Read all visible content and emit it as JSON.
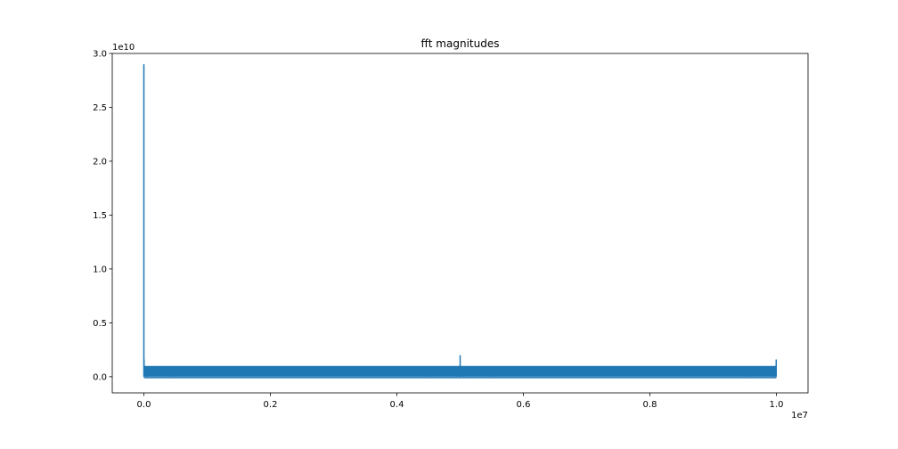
{
  "chart_data": {
    "type": "line",
    "title": "fft magnitudes",
    "xlabel": "",
    "ylabel": "",
    "x_offset_label": "1e7",
    "y_offset_label": "1e10",
    "xlim": [
      -0.05,
      1.05
    ],
    "ylim": [
      -0.15,
      3.0
    ],
    "x_ticks": [
      {
        "value": 0.0,
        "label": "0.0"
      },
      {
        "value": 0.2,
        "label": "0.2"
      },
      {
        "value": 0.4,
        "label": "0.4"
      },
      {
        "value": 0.6,
        "label": "0.6"
      },
      {
        "value": 0.8,
        "label": "0.8"
      },
      {
        "value": 1.0,
        "label": "1.0"
      }
    ],
    "y_ticks": [
      {
        "value": 0.0,
        "label": "0.0"
      },
      {
        "value": 0.5,
        "label": "0.5"
      },
      {
        "value": 1.0,
        "label": "1.0"
      },
      {
        "value": 1.5,
        "label": "1.5"
      },
      {
        "value": 2.0,
        "label": "2.0"
      },
      {
        "value": 2.5,
        "label": "2.5"
      },
      {
        "value": 3.0,
        "label": "3.0"
      }
    ],
    "grid": false,
    "series": [
      {
        "color": "#1f77b4",
        "noise_band": [
          0.0,
          0.1
        ],
        "peaks": [
          {
            "x": 0.0,
            "y": 2.9
          },
          {
            "x": 0.0003,
            "y": 0.16
          },
          {
            "x": 0.005,
            "y": 0.05
          },
          {
            "x": 0.047,
            "y": 0.05
          },
          {
            "x": 0.452,
            "y": 0.07
          },
          {
            "x": 0.494,
            "y": 0.05
          },
          {
            "x": 0.5,
            "y": 0.2
          },
          {
            "x": 0.506,
            "y": 0.05
          },
          {
            "x": 0.548,
            "y": 0.07
          },
          {
            "x": 0.953,
            "y": 0.05
          },
          {
            "x": 0.995,
            "y": 0.05
          },
          {
            "x": 0.9997,
            "y": 0.16
          }
        ]
      }
    ]
  }
}
